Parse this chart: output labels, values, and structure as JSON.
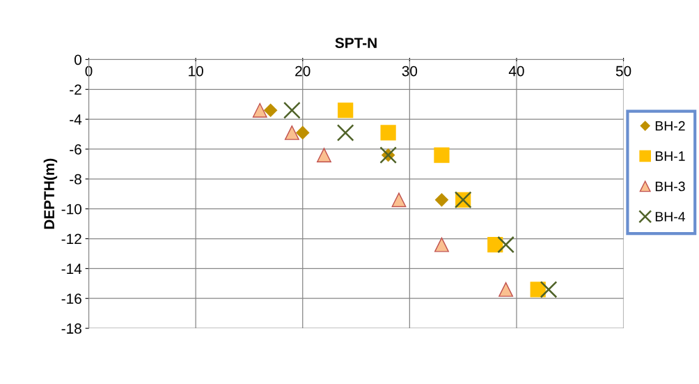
{
  "chart_data": {
    "type": "scatter",
    "title": "SPT-N",
    "ylabel": "DEPTH(m)",
    "xlim": [
      0,
      50
    ],
    "xticks": [
      0,
      10,
      20,
      30,
      40,
      50
    ],
    "ylim": [
      -18,
      0
    ],
    "yticks": [
      -18,
      -16,
      -14,
      -12,
      -10,
      -8,
      -6,
      -4,
      -2,
      0
    ],
    "grid": true,
    "legend": "right",
    "series": [
      {
        "name": "BH-2",
        "color": "#bf9000",
        "marker": "diamond",
        "x": [
          17,
          20,
          28,
          33
        ],
        "values": [
          -3.4,
          -4.9,
          -6.4,
          -9.4
        ]
      },
      {
        "name": "BH-1",
        "color": "#ffc000",
        "marker": "square",
        "x": [
          24,
          28,
          33,
          35,
          38,
          42
        ],
        "values": [
          -3.4,
          -4.9,
          -6.4,
          -9.4,
          -12.4,
          -15.4
        ]
      },
      {
        "name": "BH-3",
        "color": "#fac090",
        "marker": "triangle",
        "x": [
          16,
          19,
          22,
          29,
          33,
          39
        ],
        "values": [
          -3.4,
          -4.9,
          -6.4,
          -9.4,
          -12.4,
          -15.4
        ]
      },
      {
        "name": "BH-4",
        "color": "#4f6228",
        "marker": "cross",
        "x": [
          19,
          24,
          28,
          35,
          39,
          43
        ],
        "values": [
          -3.4,
          -4.9,
          -6.4,
          -9.4,
          -12.4,
          -15.4
        ]
      }
    ]
  }
}
